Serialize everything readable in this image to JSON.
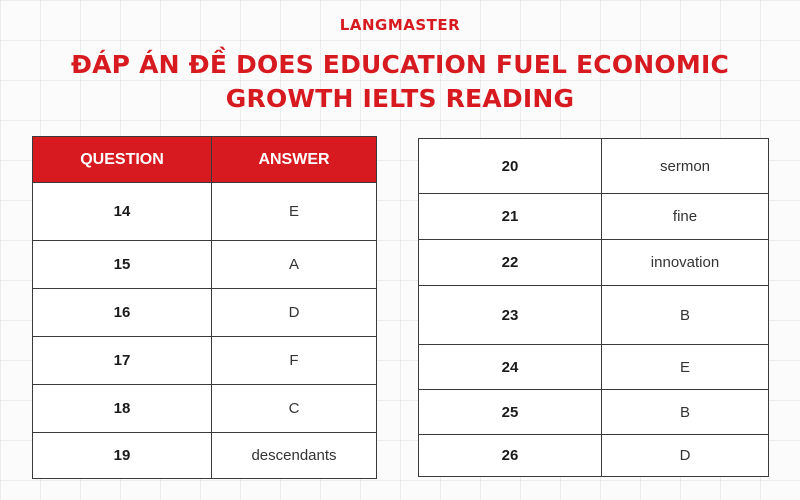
{
  "brand": "LANGMASTER",
  "title_line1": "ĐÁP ÁN ĐỀ DOES EDUCATION FUEL ECONOMIC",
  "title_line2": "GROWTH IELTS READING",
  "left_table": {
    "header": {
      "question": "QUESTION",
      "answer": "ANSWER"
    },
    "rows": [
      {
        "question": "14",
        "answer": "E"
      },
      {
        "question": "15",
        "answer": "A"
      },
      {
        "question": "16",
        "answer": "D"
      },
      {
        "question": "17",
        "answer": "F"
      },
      {
        "question": "18",
        "answer": "C"
      },
      {
        "question": "19",
        "answer": "descendants"
      }
    ]
  },
  "right_table": {
    "rows": [
      {
        "question": "20",
        "answer": "sermon"
      },
      {
        "question": "21",
        "answer": "fine"
      },
      {
        "question": "22",
        "answer": "innovation"
      },
      {
        "question": "23",
        "answer": "B"
      },
      {
        "question": "24",
        "answer": "E"
      },
      {
        "question": "25",
        "answer": "B"
      },
      {
        "question": "26",
        "answer": "D"
      }
    ]
  },
  "colors": {
    "accent": "#d71920",
    "background": "#fbfbfb"
  }
}
